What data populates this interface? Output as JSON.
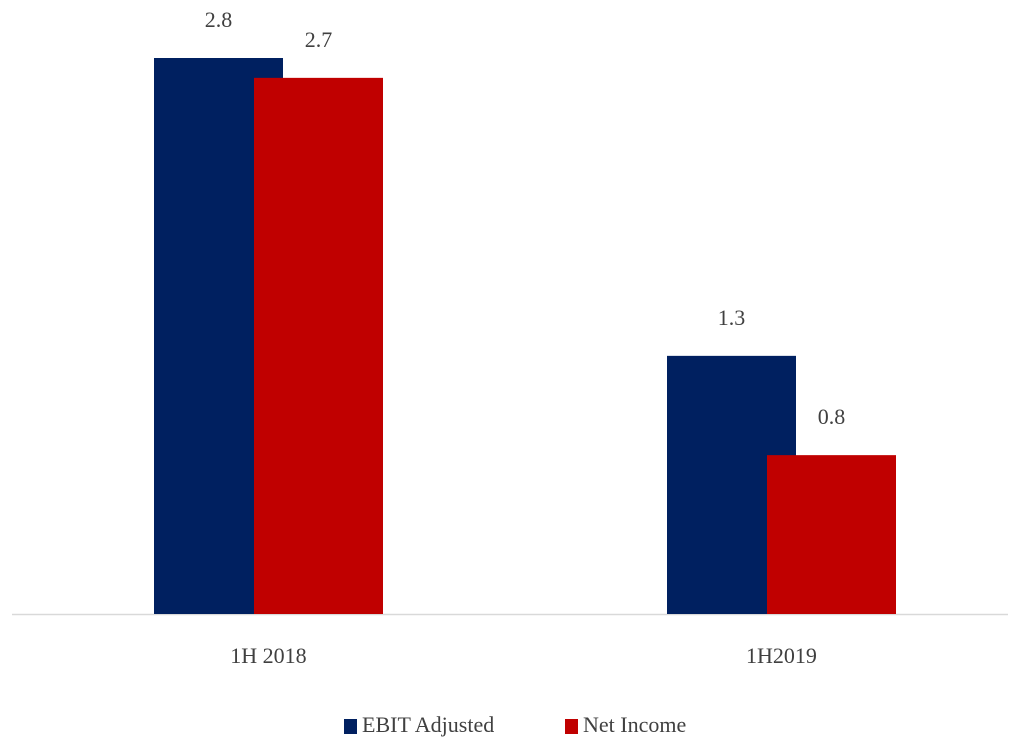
{
  "chart_data": {
    "type": "bar",
    "categories": [
      "1H 2018",
      "1H2019"
    ],
    "series": [
      {
        "name": "EBIT Adjusted",
        "color": "#002060",
        "values": [
          2.8,
          1.3
        ]
      },
      {
        "name": "Net Income",
        "color": "#c00000",
        "values": [
          2.7,
          0.8
        ]
      }
    ],
    "legend": "bottom"
  }
}
